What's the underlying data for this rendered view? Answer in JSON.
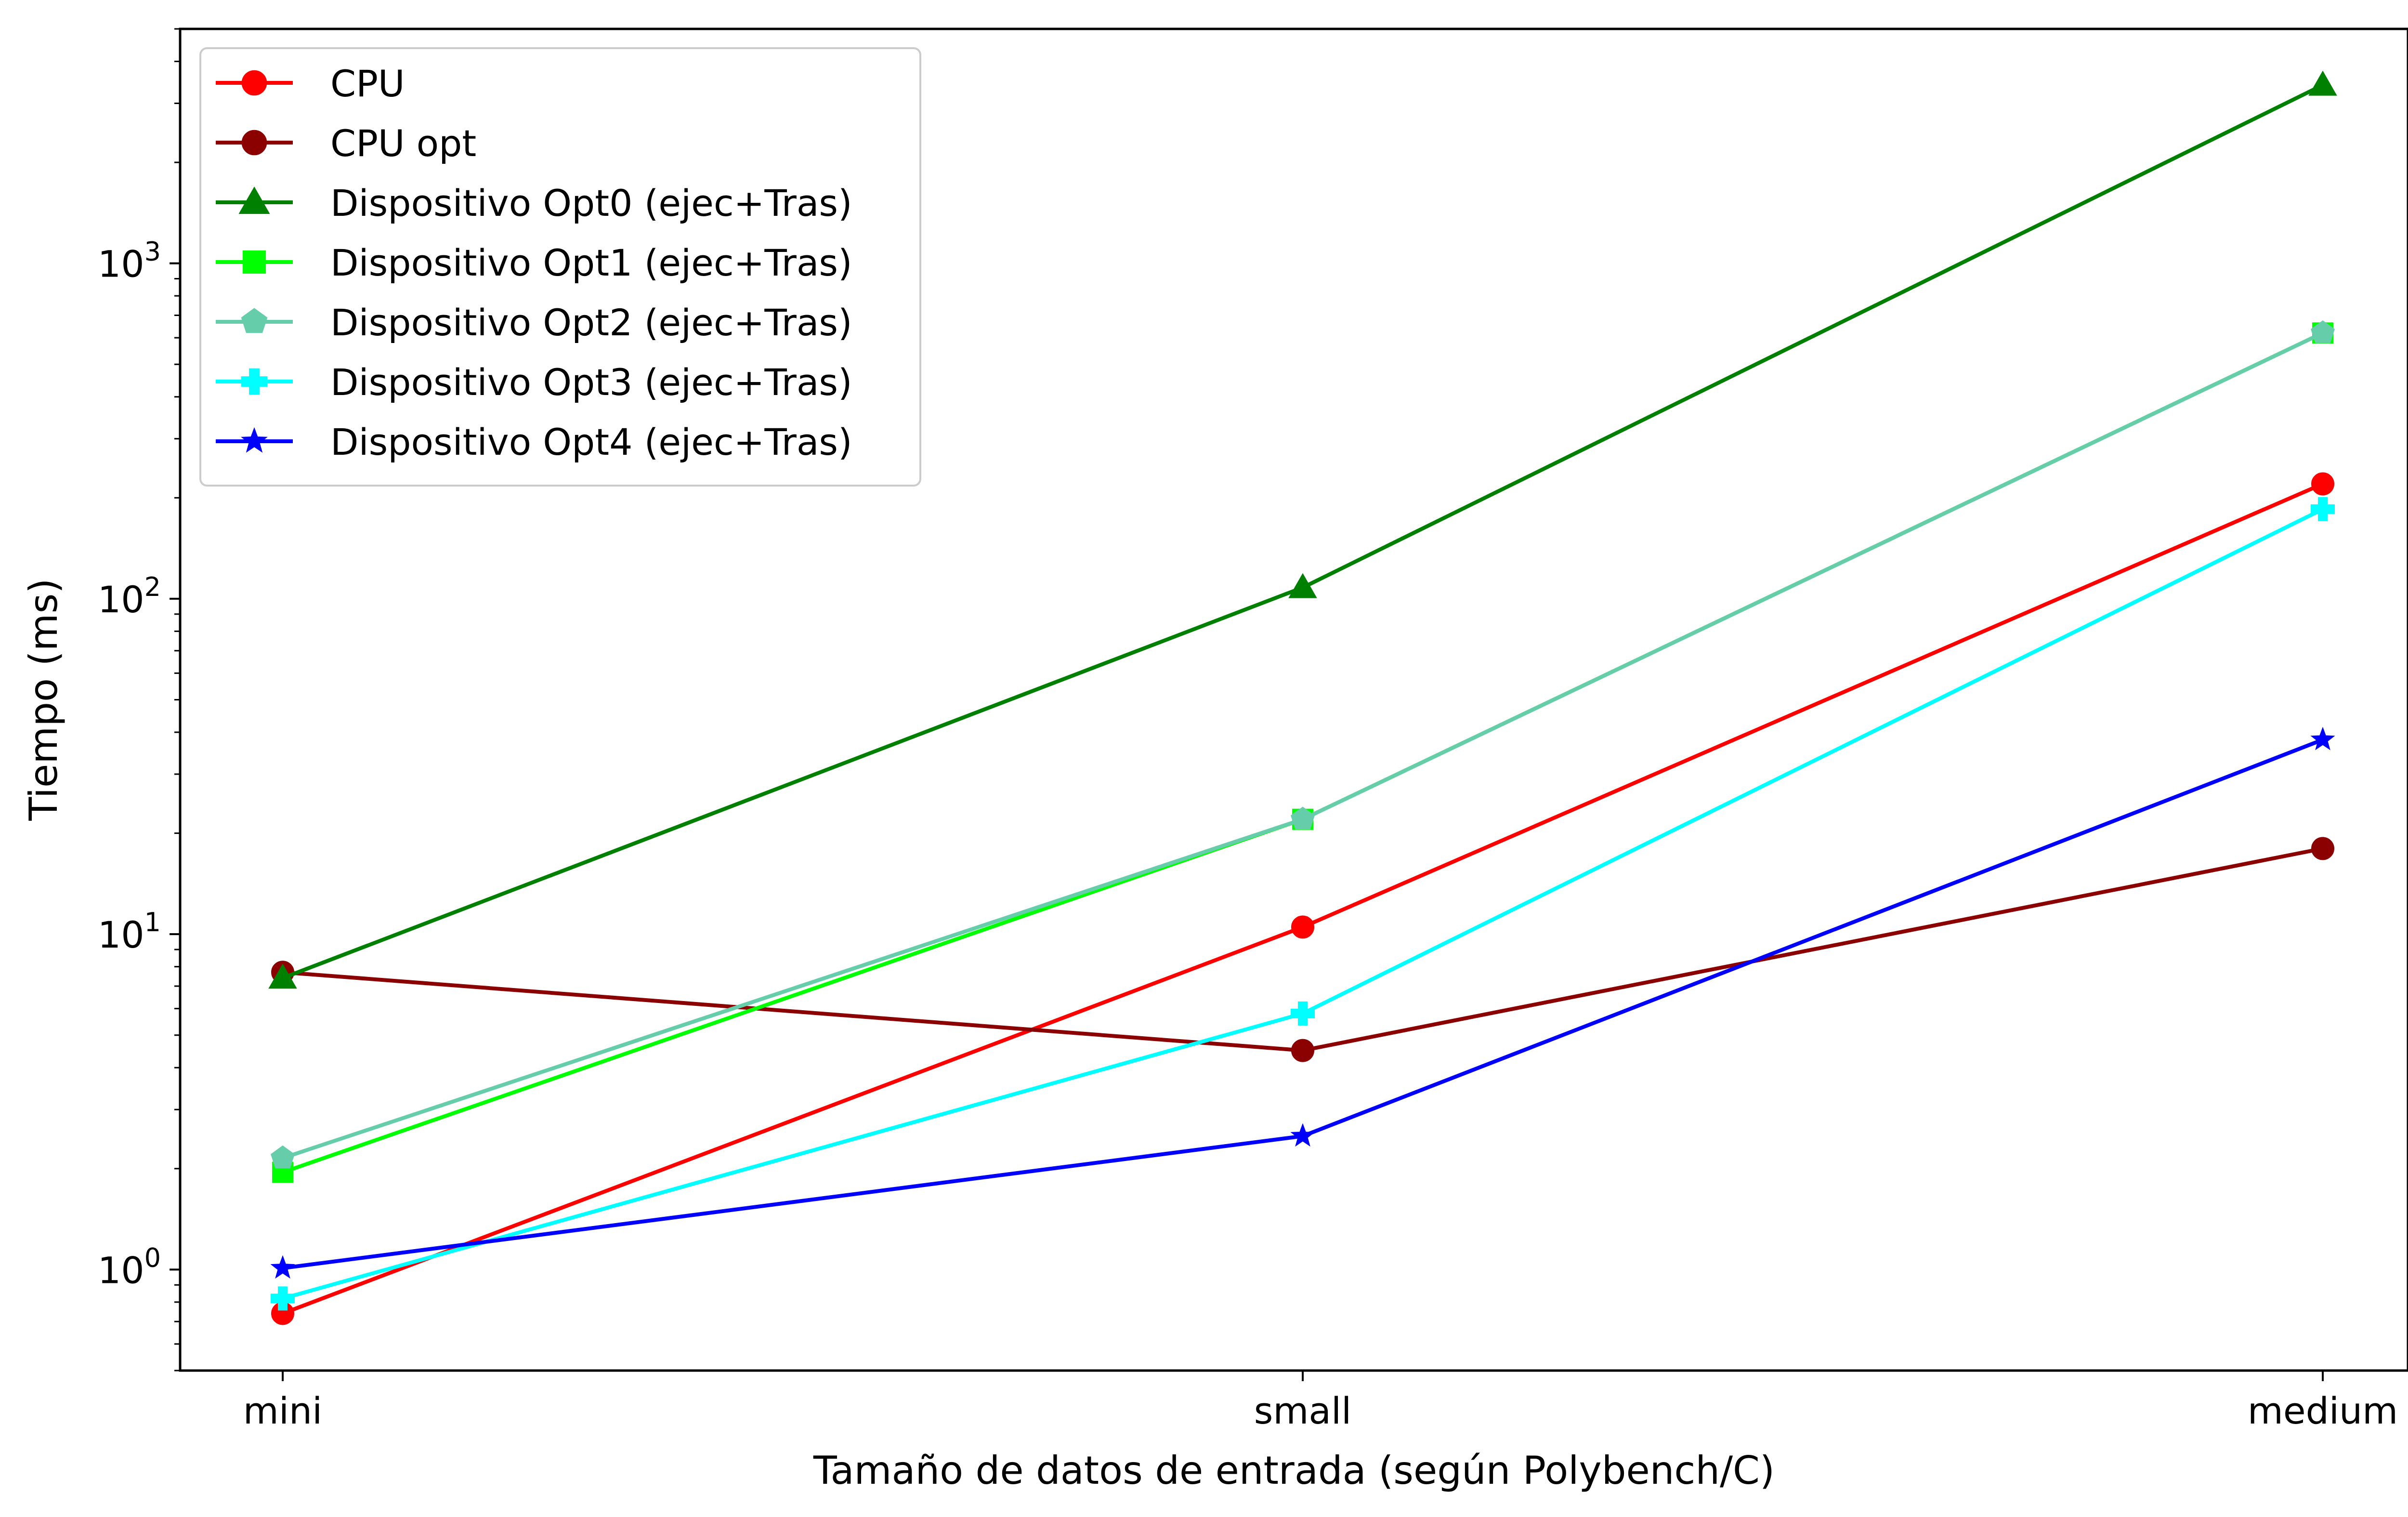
{
  "chart_data": {
    "type": "line",
    "title": "",
    "xlabel": "Tamaño de datos de entrada (según Polybench/C)",
    "ylabel": "Tiempo (ms)",
    "yscale": "log",
    "ylim": [
      0.5,
      5000
    ],
    "yticks": [
      {
        "value": 1,
        "base": "10",
        "exp": "0"
      },
      {
        "value": 10,
        "base": "10",
        "exp": "1"
      },
      {
        "value": 100,
        "base": "10",
        "exp": "2"
      },
      {
        "value": 1000,
        "base": "10",
        "exp": "3"
      }
    ],
    "categories": [
      "mini",
      "small",
      "medium"
    ],
    "grid": false,
    "legend_position": "top-left",
    "series": [
      {
        "name": "CPU",
        "color": "#ff0000",
        "marker": "circle",
        "values": [
          0.74,
          10.5,
          220
        ]
      },
      {
        "name": "CPU opt",
        "color": "#8b0000",
        "marker": "circle",
        "values": [
          7.7,
          4.5,
          18
        ]
      },
      {
        "name": "Dispositivo Opt0 (ejec+Tras)",
        "color": "#008000",
        "marker": "triangle",
        "values": [
          7.4,
          108,
          3400
        ]
      },
      {
        "name": "Dispositivo Opt1 (ejec+Tras)",
        "color": "#00ff00",
        "marker": "square",
        "values": [
          1.95,
          22,
          620
        ]
      },
      {
        "name": "Dispositivo Opt2 (ejec+Tras)",
        "color": "#66cdaa",
        "marker": "pentagon",
        "values": [
          2.15,
          22,
          620
        ]
      },
      {
        "name": "Dispositivo Opt3 (ejec+Tras)",
        "color": "#00ffff",
        "marker": "plus",
        "values": [
          0.82,
          5.8,
          185
        ]
      },
      {
        "name": "Dispositivo Opt4 (ejec+Tras)",
        "color": "#0000ff",
        "marker": "star",
        "values": [
          1.01,
          2.5,
          38
        ]
      }
    ]
  }
}
